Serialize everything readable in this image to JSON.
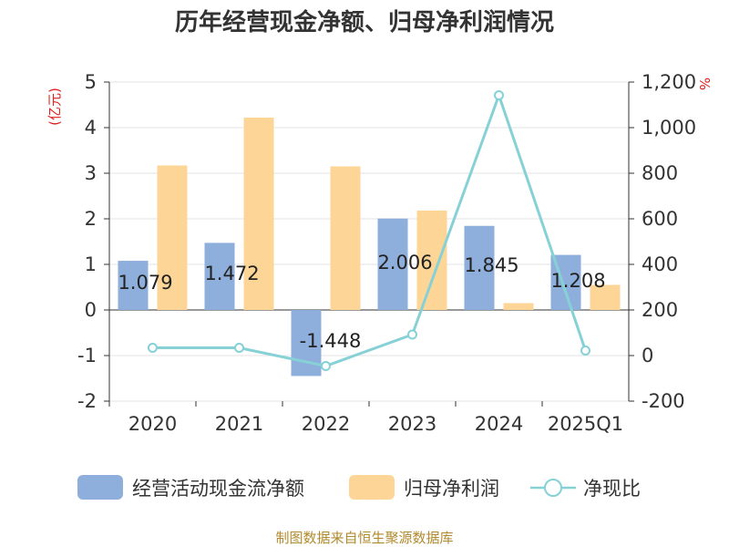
{
  "chart_data": {
    "type": "bar",
    "title": "历年经营现金净额、归母净利润情况",
    "categories": [
      "2020",
      "2021",
      "2022",
      "2023",
      "2024",
      "2025Q1"
    ],
    "y_left": {
      "unit": "(亿元)",
      "min": -2,
      "max": 5,
      "ticks": [
        5,
        4,
        3,
        2,
        1,
        0,
        -1,
        -2
      ]
    },
    "y_right": {
      "unit": "%",
      "min": -200,
      "max": 1200,
      "ticks": [
        "1,200",
        "1,000",
        "800",
        "600",
        "400",
        "200",
        "0",
        "-200"
      ]
    },
    "series": [
      {
        "name": "经营活动现金流净额",
        "type": "bar",
        "axis": "left",
        "color": "#8eaedb",
        "values": [
          1.079,
          1.472,
          -1.448,
          2.006,
          1.845,
          1.208
        ],
        "labels": [
          "1.079",
          "1.472",
          "-1.448",
          "2.006",
          "1.845",
          "1.208"
        ]
      },
      {
        "name": "归母净利润",
        "type": "bar",
        "axis": "left",
        "color": "#fdd596",
        "values": [
          3.17,
          4.22,
          3.15,
          2.18,
          0.15,
          0.55
        ]
      },
      {
        "name": "净现比",
        "type": "line",
        "axis": "right",
        "color": "#86d1d6",
        "values": [
          34,
          34,
          -46,
          92,
          1142,
          22
        ]
      }
    ],
    "legend_position": "bottom",
    "grid": "horizontal"
  },
  "source_text": "制图数据来自恒生聚源数据库"
}
